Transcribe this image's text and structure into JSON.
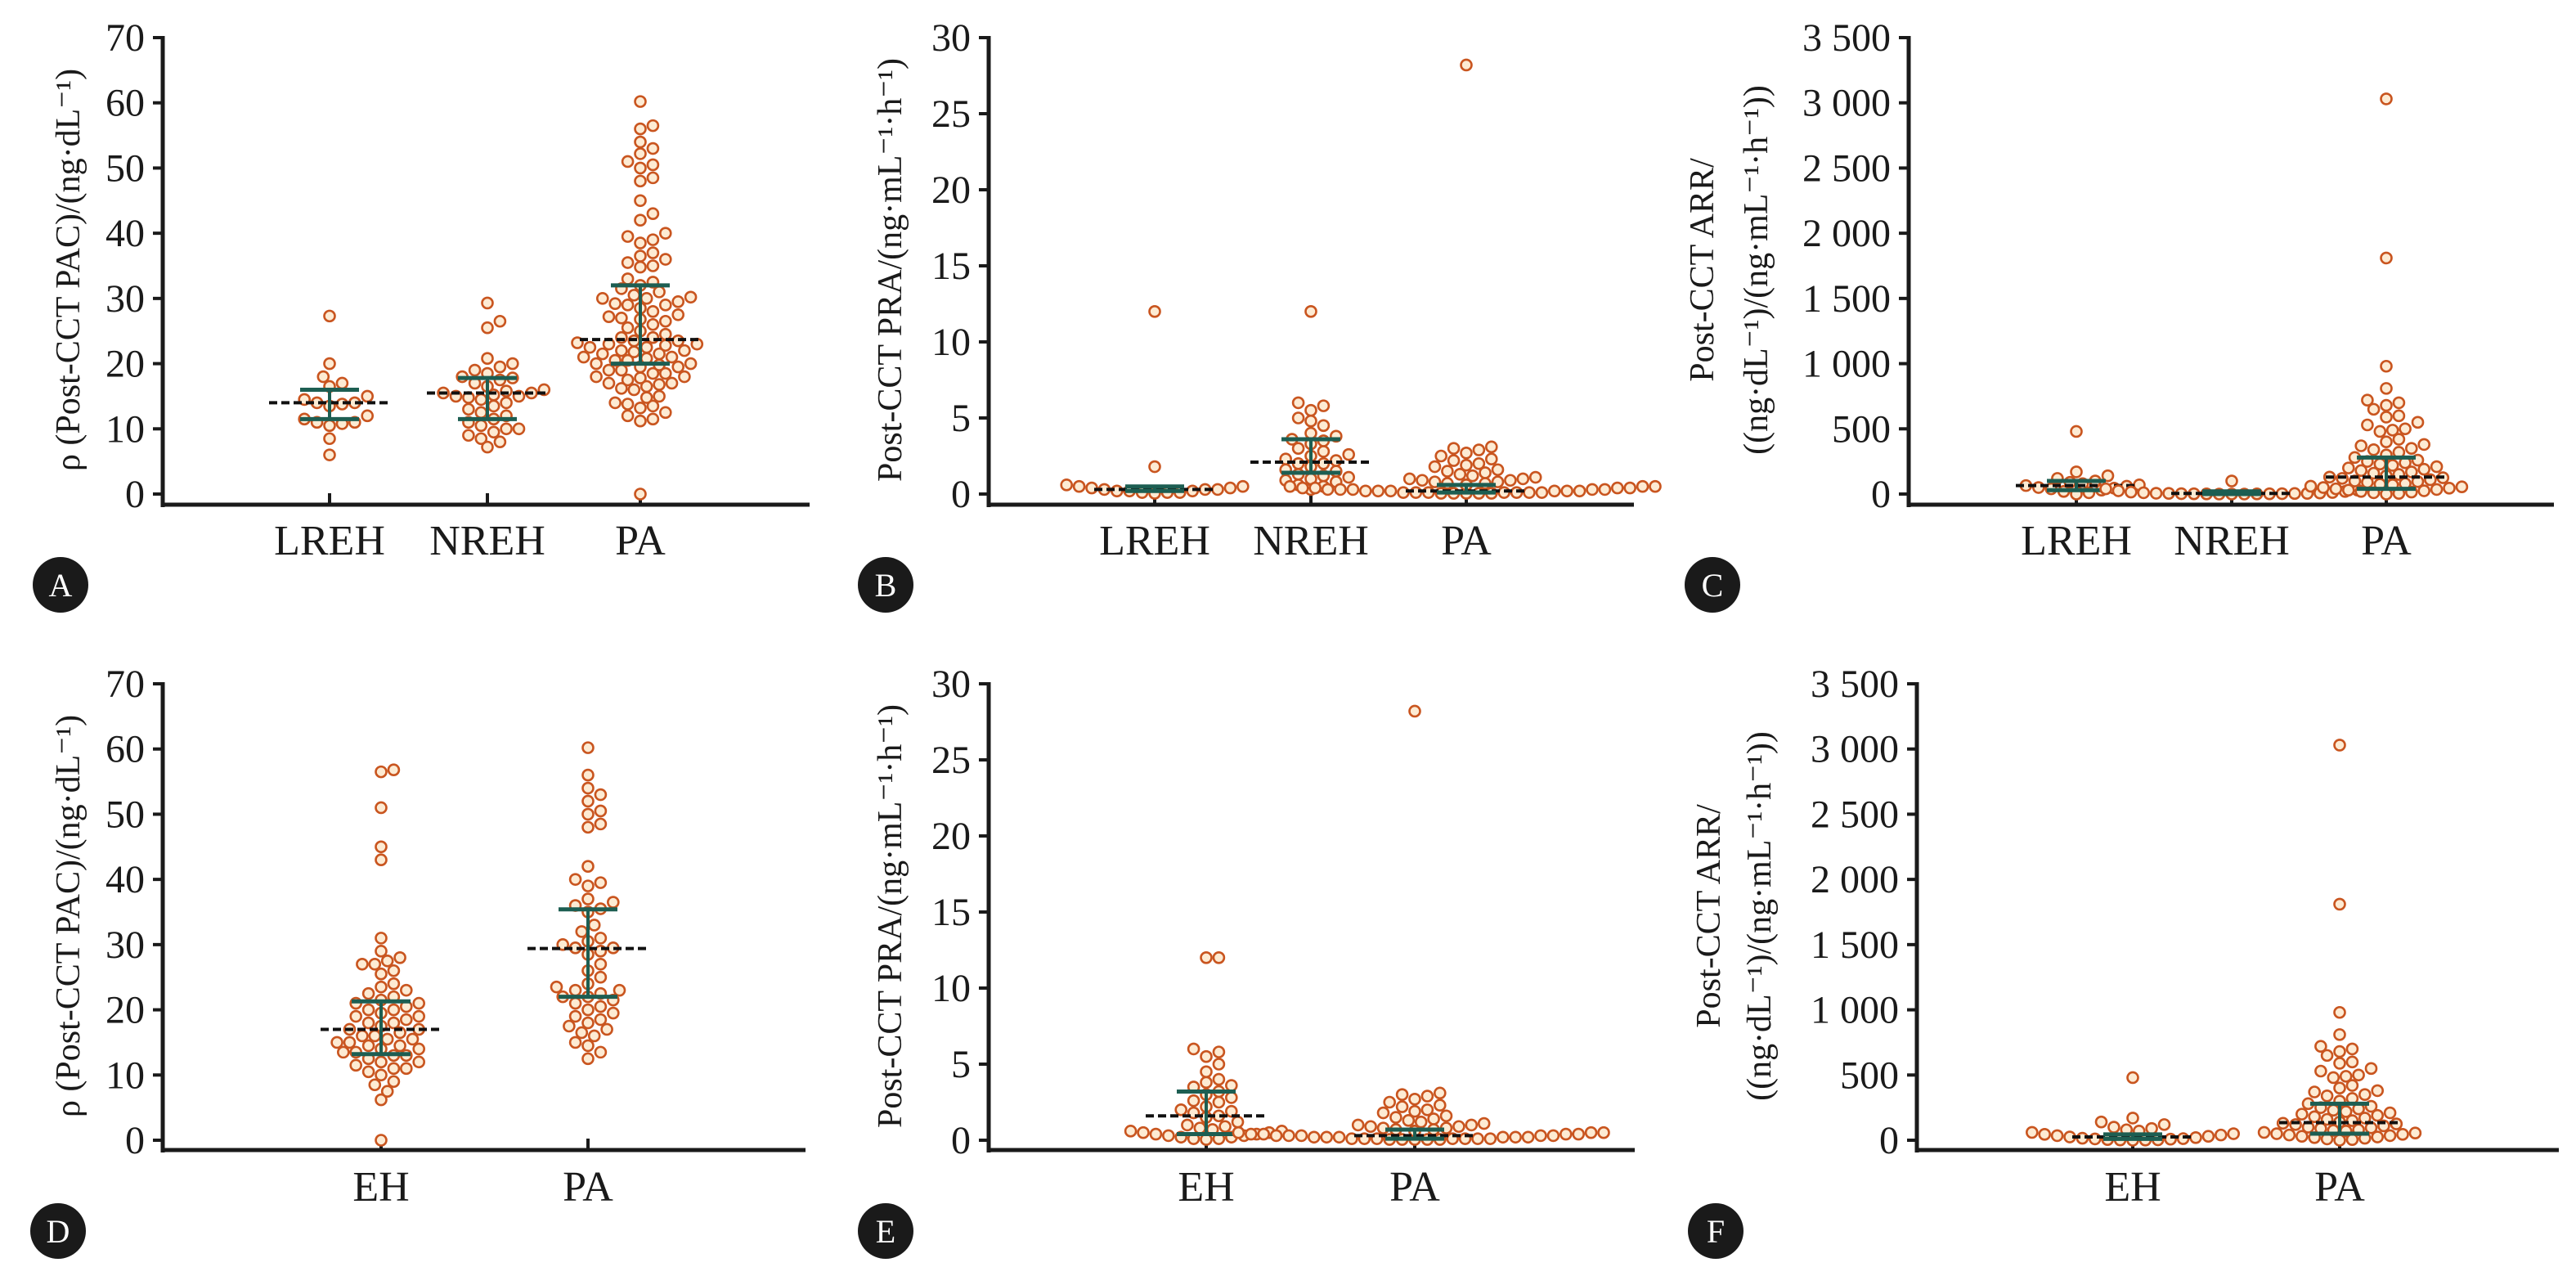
{
  "colors": {
    "point_stroke": "#c9551f",
    "point_fill": "#fdebd3",
    "error_bar": "#1d5e52",
    "median_line": "#111111",
    "axis": "#1a1a1a",
    "badge": "#1a1a1a"
  },
  "chart_data": [
    {
      "panel": "A",
      "type": "scatter",
      "ylabel": [
        "ρ (Post-CCT PAC)/(ng·dL⁻¹)"
      ],
      "ylim": [
        0,
        70
      ],
      "yticks": [
        0,
        10,
        20,
        30,
        40,
        50,
        60,
        70
      ],
      "ytick_labels": [
        "0",
        "10",
        "20",
        "30",
        "40",
        "50",
        "60",
        "70"
      ],
      "categories": [
        "LREH",
        "NREH",
        "PA"
      ],
      "groups": [
        {
          "median": 14,
          "q1": 11.5,
          "q3": 16,
          "points": [
            27.3,
            20,
            18,
            17,
            16.5,
            15,
            14.5,
            14,
            14,
            13.8,
            13.5,
            12,
            11.5,
            11,
            11,
            10.8,
            10.5,
            8.5,
            6
          ]
        },
        {
          "median": 15.5,
          "q1": 11.5,
          "q3": 17.8,
          "points": [
            29.3,
            26.5,
            25.5,
            20.8,
            20,
            19.5,
            19,
            18.5,
            18,
            17.8,
            17.5,
            17,
            16.5,
            16,
            15.8,
            15.5,
            15.5,
            15.2,
            15,
            15,
            14.8,
            14.5,
            14,
            13.5,
            13,
            12.5,
            12,
            11.5,
            11,
            10.5,
            10,
            10,
            9.5,
            9,
            8.5,
            8,
            7.2
          ]
        },
        {
          "median": 23.7,
          "q1": 20,
          "q3": 32,
          "points": [
            60.2,
            56.5,
            56,
            54,
            53,
            52.2,
            51,
            50.5,
            50,
            48.5,
            48,
            45,
            43,
            42,
            40,
            39.5,
            39,
            38.5,
            37,
            36.5,
            36,
            35.5,
            35,
            34.8,
            33,
            32.5,
            32,
            31.5,
            31,
            30.5,
            30.2,
            30,
            30,
            29.5,
            29.2,
            29,
            29,
            28.5,
            28,
            27.5,
            27.2,
            27,
            26.8,
            26.5,
            26,
            25.5,
            25,
            24.5,
            24,
            24,
            23.5,
            23.5,
            23.2,
            23,
            23,
            22.8,
            22.5,
            22.5,
            22,
            22,
            21.8,
            21.5,
            21.5,
            21,
            21,
            20.8,
            20.5,
            20.5,
            20,
            20,
            19.8,
            19.5,
            19.5,
            19,
            19,
            18.5,
            18.5,
            18,
            18,
            17.8,
            17.5,
            17,
            17,
            16.8,
            16.5,
            16.2,
            16,
            15,
            14.8,
            14,
            13.8,
            13.5,
            13.2,
            12.5,
            12,
            11.5,
            11.2,
            0
          ]
        }
      ]
    },
    {
      "panel": "B",
      "type": "scatter",
      "ylabel": [
        "Post-CCT PRA/(ng·mL⁻¹·h⁻¹)"
      ],
      "ylim": [
        0,
        30
      ],
      "yticks": [
        0,
        5,
        10,
        15,
        20,
        25,
        30
      ],
      "ytick_labels": [
        "0",
        "5",
        "10",
        "15",
        "20",
        "25",
        "30"
      ],
      "categories": [
        "LREH",
        "NREH",
        "PA"
      ],
      "groups": [
        {
          "median": 0.3,
          "q1": 0.2,
          "q3": 0.5,
          "points": [
            12,
            1.8,
            0.6,
            0.5,
            0.5,
            0.4,
            0.4,
            0.3,
            0.3,
            0.3,
            0.2,
            0.2,
            0.2,
            0.1,
            0.1,
            0.1,
            0.05
          ]
        },
        {
          "median": 2.1,
          "q1": 1.4,
          "q3": 3.6,
          "points": [
            12,
            6,
            5.8,
            5.5,
            5,
            4.8,
            4.5,
            4,
            3.8,
            3.6,
            3.5,
            3.3,
            3,
            2.8,
            2.6,
            2.5,
            2.3,
            2.2,
            2,
            2,
            1.8,
            1.6,
            1.5,
            1.3,
            1.2,
            1.1,
            1,
            0.9,
            0.8,
            0.6,
            0.5,
            0.3
          ]
        },
        {
          "median": 0.2,
          "q1": 0.1,
          "q3": 0.6,
          "points": [
            28.2,
            3.1,
            3,
            2.9,
            2.7,
            2.5,
            2.3,
            2.2,
            2,
            1.9,
            1.8,
            1.6,
            1.5,
            1.4,
            1.3,
            1.2,
            1.1,
            1,
            1,
            0.9,
            0.9,
            0.8,
            0.8,
            0.7,
            0.7,
            0.6,
            0.6,
            0.6,
            0.5,
            0.5,
            0.5,
            0.4,
            0.4,
            0.4,
            0.4,
            0.3,
            0.3,
            0.3,
            0.3,
            0.3,
            0.2,
            0.2,
            0.2,
            0.2,
            0.2,
            0.2,
            0.1,
            0.1,
            0.1,
            0.1,
            0.1,
            0.1,
            0.1,
            0.05,
            0.05,
            0.05,
            0.05,
            0.05
          ]
        }
      ]
    },
    {
      "panel": "C",
      "type": "scatter",
      "ylabel": [
        "Post-CCT ARR/",
        "((ng·dL⁻¹)/(ng·mL⁻¹·h⁻¹))"
      ],
      "ylim": [
        0,
        3500
      ],
      "yticks": [
        0,
        500,
        1000,
        1500,
        2000,
        2500,
        3000,
        3500
      ],
      "ytick_labels": [
        "0",
        "500",
        "1 000",
        "1 500",
        "2 000",
        "2 500",
        "3 000",
        "3 500"
      ],
      "categories": [
        "LREH",
        "NREH",
        "PA"
      ],
      "groups": [
        {
          "median": 65,
          "q1": 30,
          "q3": 100,
          "points": [
            480,
            170,
            140,
            120,
            100,
            90,
            80,
            70,
            65,
            60,
            50,
            45,
            40,
            30,
            20,
            10,
            0
          ]
        },
        {
          "median": 5,
          "q1": 0,
          "q3": 20,
          "points": [
            100,
            40,
            30,
            25,
            20,
            15,
            12,
            10,
            8,
            6,
            5,
            5,
            4,
            3,
            3,
            2,
            2,
            1,
            1,
            0,
            0,
            0
          ]
        },
        {
          "median": 130,
          "q1": 40,
          "q3": 280,
          "points": [
            3030,
            1810,
            980,
            810,
            720,
            700,
            680,
            650,
            600,
            590,
            550,
            530,
            500,
            490,
            480,
            420,
            400,
            380,
            370,
            350,
            340,
            320,
            300,
            280,
            260,
            250,
            240,
            230,
            220,
            210,
            200,
            190,
            180,
            170,
            160,
            150,
            140,
            130,
            125,
            120,
            110,
            100,
            95,
            90,
            80,
            75,
            70,
            60,
            55,
            50,
            45,
            40,
            35,
            30,
            25,
            20,
            15,
            10,
            5,
            0
          ]
        }
      ]
    },
    {
      "panel": "D",
      "type": "scatter",
      "ylabel": [
        "ρ (Post-CCT PAC)/(ng·dL⁻¹)"
      ],
      "ylim": [
        0,
        70
      ],
      "yticks": [
        0,
        10,
        20,
        30,
        40,
        50,
        60,
        70
      ],
      "ytick_labels": [
        "0",
        "10",
        "20",
        "30",
        "40",
        "50",
        "60",
        "70"
      ],
      "categories": [
        "EH",
        "PA"
      ],
      "groups": [
        {
          "median": 17,
          "q1": 13.2,
          "q3": 21.3,
          "points": [
            56.8,
            56.5,
            51,
            45,
            43,
            31,
            29,
            28,
            27.5,
            27,
            27,
            26,
            25.5,
            24,
            23.5,
            23,
            22.5,
            22,
            21.5,
            21,
            21,
            20.5,
            20,
            20,
            19.5,
            19,
            19,
            18.5,
            18,
            18,
            17.5,
            17,
            17,
            16.5,
            16,
            16,
            15.5,
            15.5,
            15,
            15,
            14.5,
            14.5,
            14,
            14,
            13.5,
            13.5,
            13,
            13,
            12.5,
            12,
            12,
            11.5,
            11,
            11,
            10.5,
            10,
            9,
            8.5,
            7.5,
            6.2,
            0
          ]
        },
        {
          "median": 29.4,
          "q1": 22,
          "q3": 35.4,
          "points": [
            60.2,
            56,
            54,
            53,
            52,
            50.5,
            50,
            48.5,
            48,
            42,
            40,
            39.5,
            39,
            37,
            36.5,
            36,
            35.5,
            35,
            33,
            32,
            31,
            30.5,
            30,
            29.5,
            29.5,
            29,
            28.5,
            27,
            26,
            25,
            24,
            23.5,
            23,
            23,
            22.5,
            22,
            22,
            21.5,
            21,
            20.5,
            20,
            19.5,
            19,
            18.5,
            18,
            17.5,
            17,
            16.5,
            16,
            15,
            14.5,
            13.5,
            12.5
          ]
        }
      ]
    },
    {
      "panel": "E",
      "type": "scatter",
      "ylabel": [
        "Post-CCT PRA/(ng·mL⁻¹·h⁻¹)"
      ],
      "ylim": [
        0,
        30
      ],
      "yticks": [
        0,
        5,
        10,
        15,
        20,
        25,
        30
      ],
      "ytick_labels": [
        "0",
        "5",
        "10",
        "15",
        "20",
        "25",
        "30"
      ],
      "categories": [
        "EH",
        "PA"
      ],
      "groups": [
        {
          "median": 1.6,
          "q1": 0.4,
          "q3": 3.2,
          "points": [
            12,
            12,
            6,
            5.8,
            5.5,
            5,
            4.5,
            4,
            3.8,
            3.6,
            3.5,
            3.2,
            3,
            2.8,
            2.6,
            2.5,
            2.2,
            2,
            1.9,
            1.8,
            1.6,
            1.5,
            1.2,
            1,
            0.9,
            0.8,
            0.7,
            0.6,
            0.6,
            0.5,
            0.5,
            0.4,
            0.4,
            0.3,
            0.3,
            0.2,
            0.2,
            0.1,
            0.1,
            0.05
          ]
        },
        {
          "median": 0.3,
          "q1": 0.1,
          "q3": 0.7,
          "points": [
            28.2,
            3.1,
            3,
            2.9,
            2.7,
            2.5,
            2.3,
            2.2,
            2,
            1.9,
            1.8,
            1.6,
            1.5,
            1.4,
            1.3,
            1.2,
            1.1,
            1,
            1,
            0.9,
            0.9,
            0.8,
            0.8,
            0.7,
            0.7,
            0.6,
            0.6,
            0.6,
            0.5,
            0.5,
            0.5,
            0.4,
            0.4,
            0.4,
            0.4,
            0.3,
            0.3,
            0.3,
            0.3,
            0.3,
            0.2,
            0.2,
            0.2,
            0.2,
            0.2,
            0.2,
            0.1,
            0.1,
            0.1,
            0.1,
            0.1,
            0.1,
            0.1,
            0.05,
            0.05,
            0.05,
            0.05,
            0.05
          ]
        }
      ]
    },
    {
      "panel": "F",
      "type": "scatter",
      "ylabel": [
        "Post-CCT ARR/",
        "((ng·dL⁻¹)/(ng·mL⁻¹·h⁻¹))"
      ],
      "ylim": [
        0,
        3500
      ],
      "yticks": [
        0,
        500,
        1000,
        1500,
        2000,
        2500,
        3000,
        3500
      ],
      "ytick_labels": [
        "0",
        "500",
        "1 000",
        "1 500",
        "2 000",
        "2 500",
        "3 000",
        "3 500"
      ],
      "categories": [
        "EH",
        "PA"
      ],
      "groups": [
        {
          "median": 25,
          "q1": 10,
          "q3": 45,
          "points": [
            480,
            170,
            140,
            120,
            100,
            90,
            80,
            70,
            60,
            50,
            45,
            40,
            35,
            30,
            25,
            20,
            15,
            12,
            10,
            8,
            5,
            3,
            2,
            1,
            0
          ]
        },
        {
          "median": 135,
          "q1": 50,
          "q3": 280,
          "points": [
            3030,
            1810,
            980,
            810,
            720,
            700,
            680,
            650,
            600,
            590,
            550,
            530,
            500,
            490,
            480,
            420,
            400,
            380,
            370,
            350,
            340,
            320,
            300,
            280,
            260,
            250,
            240,
            230,
            220,
            210,
            200,
            190,
            180,
            170,
            160,
            150,
            140,
            130,
            125,
            120,
            110,
            100,
            95,
            90,
            80,
            75,
            70,
            60,
            55,
            50,
            45,
            40,
            35,
            30,
            25,
            20,
            15,
            10,
            5,
            0
          ]
        }
      ]
    }
  ]
}
